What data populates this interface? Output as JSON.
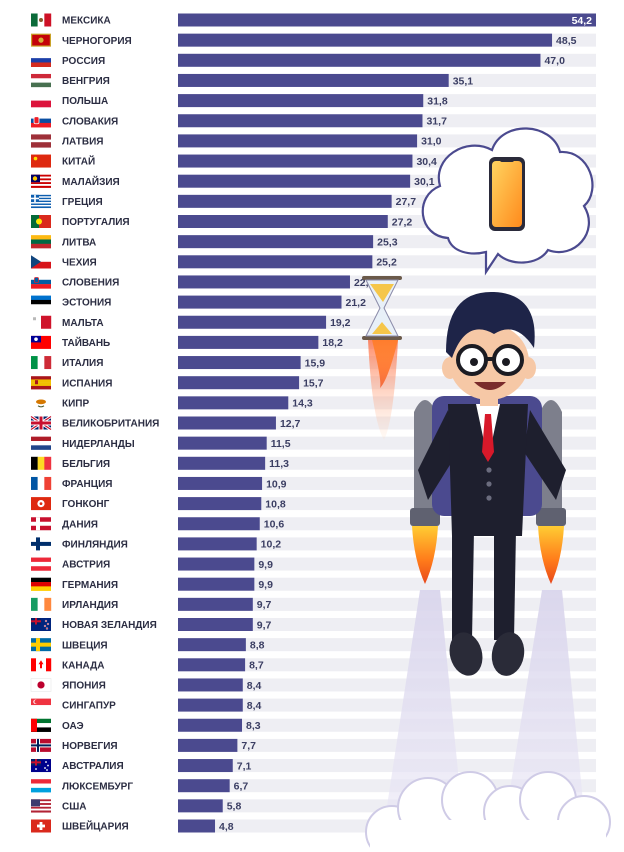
{
  "colors": {
    "bar": "#4b4a8f",
    "track": "#eeeef3",
    "label": "#2b2d42",
    "value": "#3b3e63"
  },
  "chart_data": {
    "type": "bar",
    "orientation": "horizontal",
    "title": "",
    "xlabel": "",
    "ylabel": "",
    "xlim": [
      0,
      54.2
    ],
    "grid": false,
    "legend": "none",
    "data_labels_decimal_separator": ",",
    "categories": [
      "МЕКСИКА",
      "ЧЕРНОГОРИЯ",
      "РОССИЯ",
      "ВЕНГРИЯ",
      "ПОЛЬША",
      "СЛОВАКИЯ",
      "ЛАТВИЯ",
      "КИТАЙ",
      "МАЛАЙЗИЯ",
      "ГРЕЦИЯ",
      "ПОРТУГАЛИЯ",
      "ЛИТВА",
      "ЧЕХИЯ",
      "СЛОВЕНИЯ",
      "ЭСТОНИЯ",
      "МАЛЬТА",
      "ТАЙВАНЬ",
      "ИТАЛИЯ",
      "ИСПАНИЯ",
      "КИПР",
      "ВЕЛИКОБРИТАНИЯ",
      "НИДЕРЛАНДЫ",
      "БЕЛЬГИЯ",
      "ФРАНЦИЯ",
      "ГОНКОНГ",
      "ДАНИЯ",
      "ФИНЛЯНДИЯ",
      "АВСТРИЯ",
      "ГЕРМАНИЯ",
      "ИРЛАНДИЯ",
      "НОВАЯ ЗЕЛАНДИЯ",
      "ШВЕЦИЯ",
      "КАНАДА",
      "ЯПОНИЯ",
      "СИНГАПУР",
      "ОАЭ",
      "НОРВЕГИЯ",
      "АВСТРАЛИЯ",
      "ЛЮКСЕМБУРГ",
      "США",
      "ШВЕЙЦАРИЯ"
    ],
    "values": [
      54.2,
      48.5,
      47.0,
      35.1,
      31.8,
      31.7,
      31.0,
      30.4,
      30.1,
      27.7,
      27.2,
      25.3,
      25.2,
      22.3,
      21.2,
      19.2,
      18.2,
      15.9,
      15.7,
      14.3,
      12.7,
      11.5,
      11.3,
      10.9,
      10.8,
      10.6,
      10.2,
      9.9,
      9.9,
      9.7,
      9.7,
      8.8,
      8.7,
      8.4,
      8.4,
      8.3,
      7.7,
      7.1,
      6.7,
      5.8,
      4.8
    ],
    "flag_icons": [
      "flag-mexico-icon",
      "flag-montenegro-icon",
      "flag-russia-icon",
      "flag-hungary-icon",
      "flag-poland-icon",
      "flag-slovakia-icon",
      "flag-latvia-icon",
      "flag-china-icon",
      "flag-malaysia-icon",
      "flag-greece-icon",
      "flag-portugal-icon",
      "flag-lithuania-icon",
      "flag-czechia-icon",
      "flag-slovenia-icon",
      "flag-estonia-icon",
      "flag-malta-icon",
      "flag-taiwan-icon",
      "flag-italy-icon",
      "flag-spain-icon",
      "flag-cyprus-icon",
      "flag-uk-icon",
      "flag-netherlands-icon",
      "flag-belgium-icon",
      "flag-france-icon",
      "flag-hongkong-icon",
      "flag-denmark-icon",
      "flag-finland-icon",
      "flag-austria-icon",
      "flag-germany-icon",
      "flag-ireland-icon",
      "flag-new-zealand-icon",
      "flag-sweden-icon",
      "flag-canada-icon",
      "flag-japan-icon",
      "flag-singapore-icon",
      "flag-uae-icon",
      "flag-norway-icon",
      "flag-australia-icon",
      "flag-luxembourg-icon",
      "flag-usa-icon",
      "flag-switzerland-icon"
    ]
  },
  "illustration": {
    "name": "businessman-with-jetpack-illustration",
    "thought_icon": "smartphone-icon",
    "hourglass_icon": "hourglass-icon"
  }
}
